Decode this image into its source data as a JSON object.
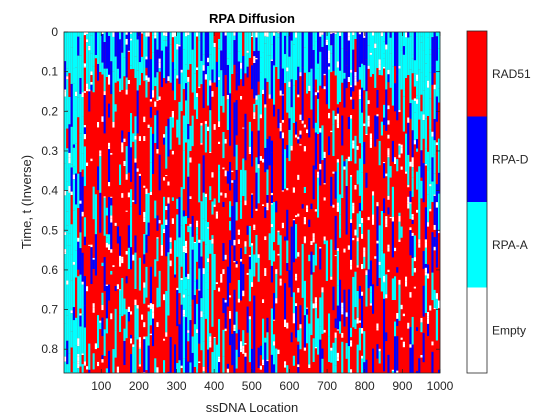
{
  "chart_data": {
    "type": "heatmap",
    "title": "RPA Diffusion",
    "xlabel": "ssDNA Location",
    "ylabel": "Time, t (Inverse)",
    "x_ticks": [
      100,
      200,
      300,
      400,
      500,
      600,
      700,
      800,
      900,
      1000
    ],
    "y_ticks": [
      0,
      0.1,
      0.2,
      0.3,
      0.4,
      0.5,
      0.6,
      0.7,
      0.8
    ],
    "xlim": [
      1,
      1000
    ],
    "ylim": [
      0,
      0.86
    ],
    "y_direction": "reversed",
    "colorbar": {
      "placement": "right",
      "categories": [
        {
          "label": "Empty",
          "color": "#ffffff"
        },
        {
          "label": "RPA-A",
          "color": "#00ffff"
        },
        {
          "label": "RPA-D",
          "color": "#0000ff"
        },
        {
          "label": "RAD51",
          "color": "#ff0000"
        }
      ]
    }
  }
}
